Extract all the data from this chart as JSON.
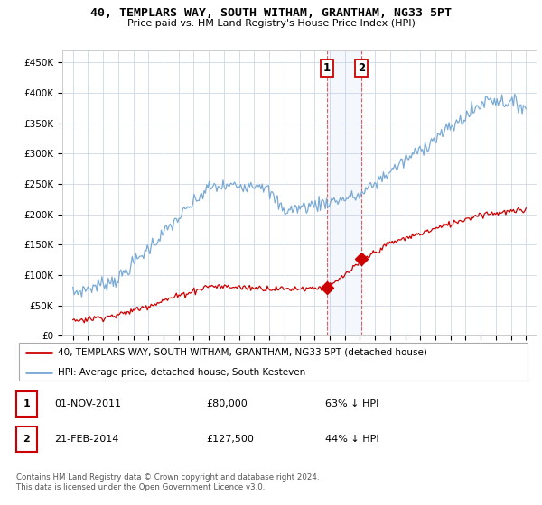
{
  "title": "40, TEMPLARS WAY, SOUTH WITHAM, GRANTHAM, NG33 5PT",
  "subtitle": "Price paid vs. HM Land Registry's House Price Index (HPI)",
  "ylim": [
    0,
    470000
  ],
  "yticks": [
    0,
    50000,
    100000,
    150000,
    200000,
    250000,
    300000,
    350000,
    400000,
    450000
  ],
  "hpi_color": "#7aaad4",
  "price_color": "#cc0000",
  "transaction1_date": 2011.83,
  "transaction1_price": 80000,
  "transaction2_date": 2014.12,
  "transaction2_price": 127500,
  "footer_text": "Contains HM Land Registry data © Crown copyright and database right 2024.\nThis data is licensed under the Open Government Licence v3.0.",
  "legend_line1": "40, TEMPLARS WAY, SOUTH WITHAM, GRANTHAM, NG33 5PT (detached house)",
  "legend_line2": "HPI: Average price, detached house, South Kesteven",
  "background_color": "#ffffff",
  "grid_color": "#d0d8e8"
}
